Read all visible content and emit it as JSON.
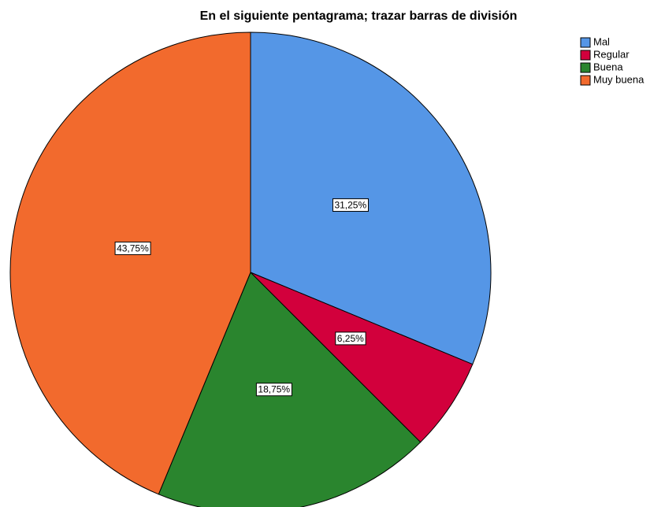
{
  "chart_data": {
    "type": "pie",
    "title": "En el siguiente pentagrama; trazar barras de división",
    "categories": [
      "Mal",
      "Regular",
      "Buena",
      "Muy buena"
    ],
    "values": [
      31.25,
      6.25,
      18.75,
      43.75
    ],
    "value_labels": [
      "31,25%",
      "6,25%",
      "18,75%",
      "43,75%"
    ],
    "colors": [
      "#5596e6",
      "#d2003c",
      "#2a852e",
      "#f26a2d"
    ],
    "legend": "top-right"
  }
}
